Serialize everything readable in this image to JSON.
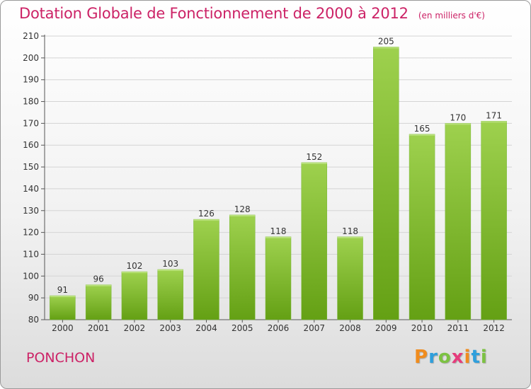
{
  "title": "Dotation Globale de Fonctionnement de 2000 à 2012",
  "unit_label": "(en milliers d'€)",
  "commune": "PONCHON",
  "logo": {
    "letters": [
      "P",
      "r",
      "o",
      "x",
      "i",
      "t",
      "i"
    ],
    "colors": [
      "#f08c1e",
      "#2f9fdc",
      "#7cc242",
      "#e63c7c",
      "#f08c1e",
      "#2f9fdc",
      "#7cc242"
    ]
  },
  "colors": {
    "title": "#cc2266",
    "bar_top": "#9ed14e",
    "bar_bottom": "#64a014",
    "grid": "#d4d4d4"
  },
  "chart_data": {
    "type": "bar",
    "categories": [
      "2000",
      "2001",
      "2002",
      "2003",
      "2004",
      "2005",
      "2006",
      "2007",
      "2008",
      "2009",
      "2010",
      "2011",
      "2012"
    ],
    "values": [
      91,
      96,
      102,
      103,
      126,
      128,
      118,
      152,
      118,
      205,
      165,
      170,
      171
    ],
    "data_labels": [
      "91",
      "96",
      "102",
      "103",
      "126",
      "128",
      "118",
      "152",
      "118",
      "205",
      "165",
      "170",
      "171"
    ],
    "title": "Dotation Globale de Fonctionnement de 2000 à 2012",
    "ylim": [
      80,
      210
    ],
    "yticks": [
      80,
      90,
      100,
      110,
      120,
      130,
      140,
      150,
      160,
      170,
      180,
      190,
      200,
      210
    ],
    "grid": true
  }
}
